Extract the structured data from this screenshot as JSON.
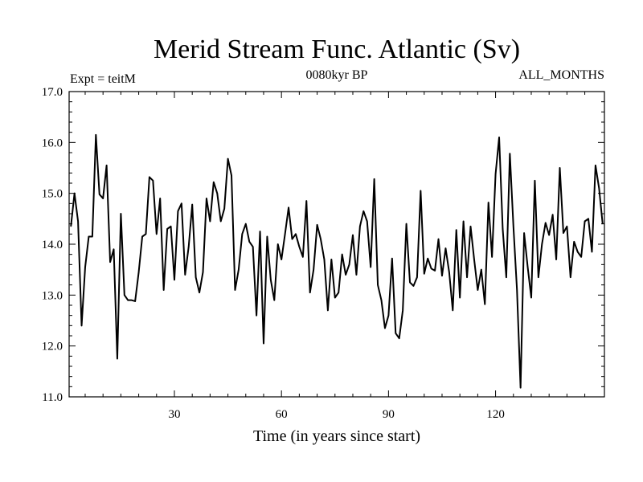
{
  "chart_data": {
    "type": "line",
    "title": "Merid Stream Func. Atlantic (Sv)",
    "subtitle_left": "Expt = teitM",
    "subtitle_center": "0080kyr BP",
    "subtitle_right": "ALL_MONTHS",
    "xlabel": "Time (in years since start)",
    "ylabel": "",
    "xlim": [
      0.5,
      150.5
    ],
    "ylim": [
      11.0,
      17.0
    ],
    "x_ticks": [
      30,
      60,
      90,
      120
    ],
    "y_ticks": [
      11.0,
      12.0,
      13.0,
      14.0,
      15.0,
      16.0,
      17.0
    ],
    "x_tick_labels": [
      "30",
      "60",
      "90",
      "120"
    ],
    "y_tick_labels": [
      "11.0",
      "12.0",
      "13.0",
      "14.0",
      "15.0",
      "16.0",
      "17.0"
    ],
    "grid": false,
    "line_color": "#000000",
    "series": [
      {
        "x_start": 1,
        "x_step": 1,
        "values": [
          14.35,
          15.0,
          14.45,
          12.4,
          13.55,
          14.15,
          14.15,
          16.15,
          14.98,
          14.9,
          15.55,
          13.65,
          13.9,
          11.75,
          14.6,
          13.0,
          12.9,
          12.9,
          12.88,
          13.45,
          14.15,
          14.2,
          15.32,
          15.25,
          14.2,
          14.9,
          13.1,
          14.3,
          14.35,
          13.3,
          14.65,
          14.8,
          13.4,
          13.95,
          14.78,
          13.35,
          13.05,
          13.45,
          14.9,
          14.45,
          15.22,
          15.0,
          14.45,
          14.7,
          15.68,
          15.35,
          13.1,
          13.5,
          14.2,
          14.4,
          14.05,
          13.95,
          12.6,
          14.25,
          12.05,
          14.15,
          13.3,
          12.9,
          14.0,
          13.7,
          14.2,
          14.72,
          14.1,
          14.2,
          13.95,
          13.75,
          14.85,
          13.05,
          13.5,
          14.38,
          14.1,
          13.7,
          12.7,
          13.7,
          12.95,
          13.05,
          13.8,
          13.4,
          13.6,
          14.18,
          13.4,
          14.35,
          14.65,
          14.45,
          13.55,
          15.28,
          13.2,
          12.9,
          12.35,
          12.6,
          13.72,
          12.25,
          12.15,
          12.7,
          14.4,
          13.25,
          13.18,
          13.35,
          15.05,
          13.42,
          13.72,
          13.52,
          13.48,
          14.1,
          13.38,
          13.92,
          13.45,
          12.7,
          14.28,
          12.95,
          14.45,
          13.35,
          14.35,
          13.7,
          13.1,
          13.5,
          12.82,
          14.82,
          13.75,
          15.38,
          16.1,
          14.3,
          13.35,
          15.78,
          14.35,
          13.1,
          11.18,
          14.22,
          13.55,
          12.95,
          15.25,
          13.35,
          14.0,
          14.42,
          14.18,
          14.58,
          13.7,
          15.5,
          14.22,
          14.35,
          13.35,
          14.05,
          13.85,
          13.75,
          14.45,
          14.5,
          13.85,
          15.55,
          15.1,
          14.4
        ]
      }
    ]
  }
}
